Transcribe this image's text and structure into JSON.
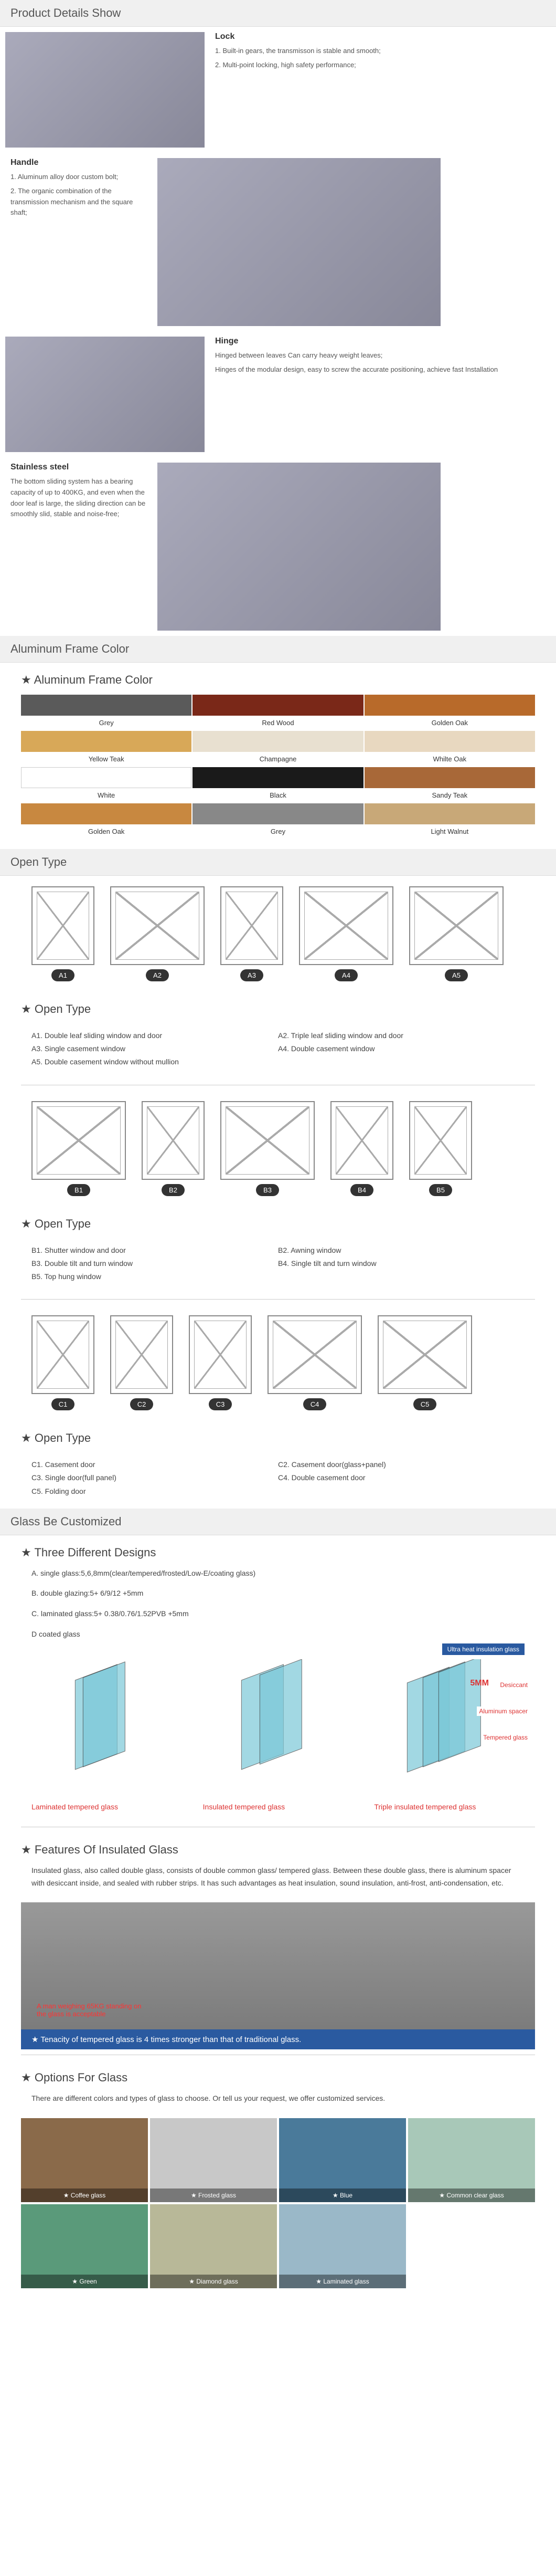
{
  "sections": {
    "productDetails": "Product Details Show",
    "frameColor": "Aluminum Frame Color",
    "openType": "Open Type",
    "glassCustom": "Glass Be Customized"
  },
  "details": {
    "lock": {
      "title": "Lock",
      "p1": "1. Built-in gears, the transmisson is stable and smooth;",
      "p2": "2. Multi-point locking, high safety performance;"
    },
    "handle": {
      "title": "Handle",
      "p1": "1. Aluminum alloy door custom bolt;",
      "p2": "2. The organic combination of the transmission mechanism and the square shaft;"
    },
    "hinge": {
      "title": "Hinge",
      "p1": "Hinged between leaves Can carry heavy weight leaves;",
      "p2": "Hinges of the modular design, easy to screw the accurate positioning, achieve fast Installation"
    },
    "steel": {
      "title": "Stainless steel",
      "p1": "The bottom sliding system has a bearing capacity of up to 400KG, and even when the door leaf is large, the sliding direction can be smoothly slid, stable and noise-free;"
    }
  },
  "frameHeader": "Aluminum Frame Color",
  "colors": [
    {
      "name": "Grey",
      "hex": "#5a5a5a"
    },
    {
      "name": "Red Wood",
      "hex": "#7a2818"
    },
    {
      "name": "Golden Oak",
      "hex": "#b86a2a"
    },
    {
      "name": "Yellow Teak",
      "hex": "#d8a858"
    },
    {
      "name": "Champagne",
      "hex": "#e8e0d0"
    },
    {
      "name": "Whilte Oak",
      "hex": "#e8d8c0"
    },
    {
      "name": "White",
      "hex": "#ffffff"
    },
    {
      "name": "Black",
      "hex": "#1a1a1a"
    },
    {
      "name": "Sandy Teak",
      "hex": "#a86838"
    },
    {
      "name": "Golden Oak",
      "hex": "#c88840"
    },
    {
      "name": "Grey",
      "hex": "#888888"
    },
    {
      "name": "Light Walnut",
      "hex": "#c8a878"
    }
  ],
  "openA": {
    "header": "Open Type",
    "badges": [
      "A1",
      "A2",
      "A3",
      "A4",
      "A5"
    ],
    "items": [
      {
        "l": "A1. Double leaf sliding window and door",
        "r": "A2. Triple leaf sliding window and door"
      },
      {
        "l": "A3. Single casement window",
        "r": "A4. Double casement window"
      },
      {
        "l": "A5. Double casement window without mullion",
        "r": ""
      }
    ]
  },
  "openB": {
    "header": "Open Type",
    "badges": [
      "B1",
      "B2",
      "B3",
      "B4",
      "B5"
    ],
    "items": [
      {
        "l": "B1. Shutter window and door",
        "r": "B2. Awning window"
      },
      {
        "l": "B3. Double tilt and turn window",
        "r": "B4. Single tilt and turn window"
      },
      {
        "l": "B5. Top hung window",
        "r": ""
      }
    ]
  },
  "openC": {
    "header": "Open Type",
    "badges": [
      "C1",
      "C2",
      "C3",
      "C4",
      "C5"
    ],
    "items": [
      {
        "l": "C1. Casement door",
        "r": "C2. Casement door(glass+panel)"
      },
      {
        "l": "C3. Single door(full panel)",
        "r": "C4. Double casement door"
      },
      {
        "l": "C5. Folding door",
        "r": ""
      }
    ]
  },
  "designs": {
    "header": "Three Different Designs",
    "a": "A. single glass:5,6,8mm(clear/tempered/frosted/Low-E/coating glass)",
    "b": "B. double glazing:5+ 6/9/12 +5mm",
    "c": "C. laminated glass:5+ 0.38/0.76/1.52PVB +5mm",
    "d": "D coated glass",
    "ultra": "Ultra heat insulation glass",
    "fivemm": "5MM",
    "callouts": {
      "desiccant": "Desiccant",
      "spacer": "Aluminum spacer",
      "tempered": "Tempered glass"
    },
    "labels": [
      "Laminated tempered glass",
      "Insulated tempered glass",
      "Triple insulated tempered glass"
    ]
  },
  "features": {
    "header": "Features Of Insulated Glass",
    "text": "Insulated glass, also called double glass, consists of double common glass/ tempered glass. Between these double glass, there is aluminum spacer with desiccant inside, and sealed with rubber strips. It has such advantages as heat insulation, sound insulation, anti-frost, anti-condensation, etc.",
    "caption": "Tenacity of tempered glass is 4 times stronger than that of traditional glass.",
    "redNote": "A man weighing 65KG standing on the glass is acceptable"
  },
  "options": {
    "header": "Options For Glass",
    "text": "There are different colors and types of glass to choose. Or tell us your request, we offer customized services.",
    "items": [
      "Coffee glass",
      "Frosted glass",
      "Blue",
      "Common clear glass",
      "Green",
      "Diamond glass",
      "Laminated glass"
    ]
  }
}
